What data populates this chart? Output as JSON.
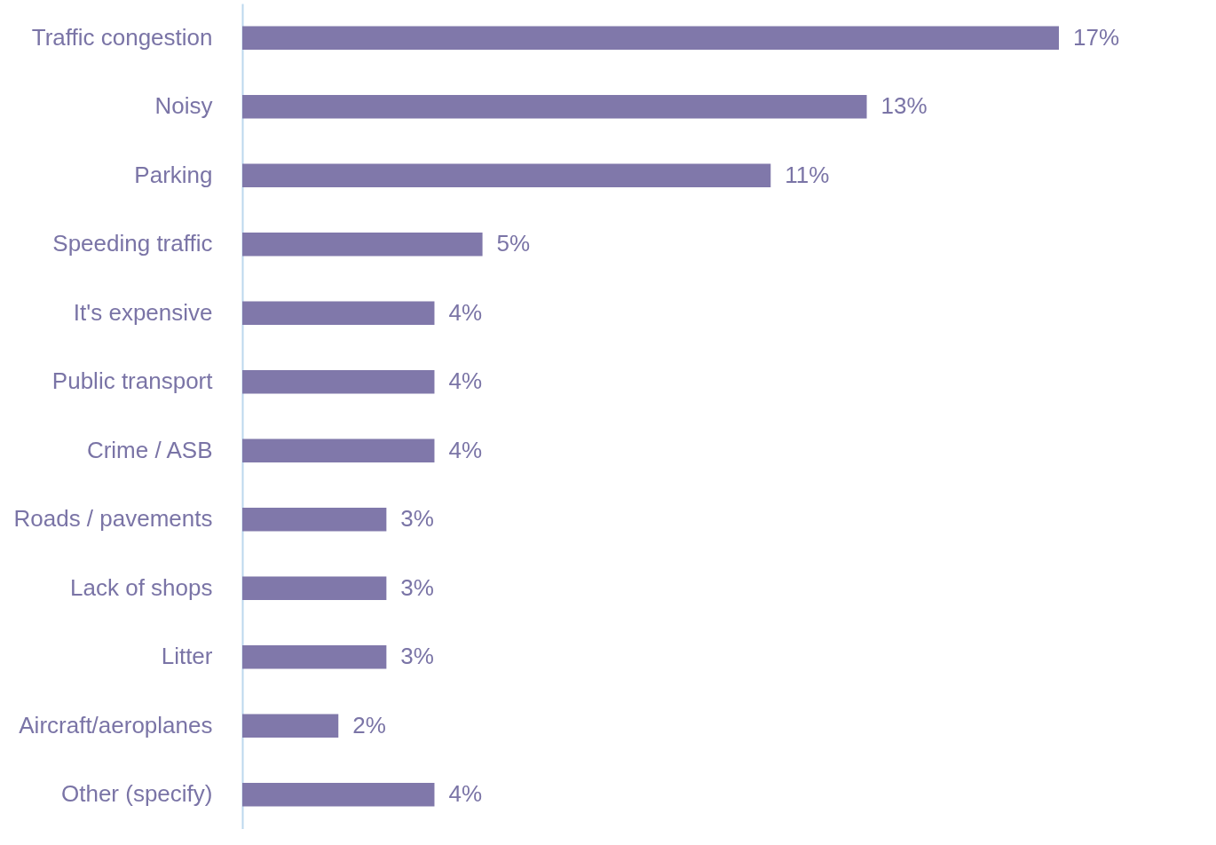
{
  "chart_data": {
    "type": "bar",
    "orientation": "horizontal",
    "categories": [
      "Traffic congestion",
      "Noisy",
      "Parking",
      "Speeding traffic",
      "It's expensive",
      "Public transport",
      "Crime / ASB",
      "Roads / pavements",
      "Lack of shops",
      "Litter",
      "Aircraft/aeroplanes",
      "Other (specify)"
    ],
    "values": [
      17,
      13,
      11,
      5,
      4,
      4,
      4,
      3,
      3,
      3,
      2,
      4
    ],
    "value_labels": [
      "17%",
      "13%",
      "11%",
      "5%",
      "4%",
      "4%",
      "4%",
      "3%",
      "3%",
      "3%",
      "2%",
      "4%"
    ],
    "color": "#8078aa"
  }
}
